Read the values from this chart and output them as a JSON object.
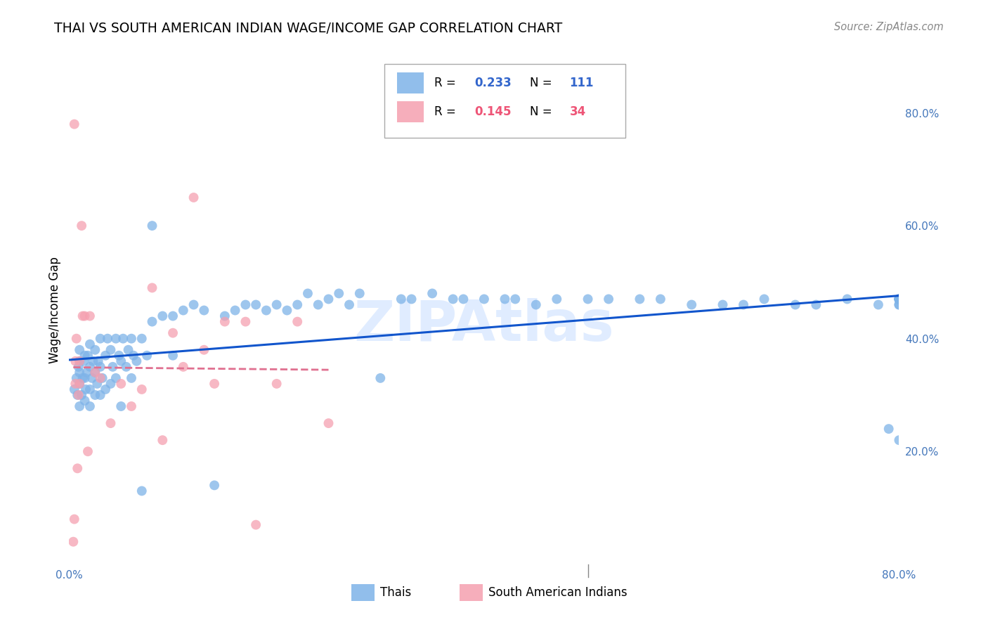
{
  "title": "THAI VS SOUTH AMERICAN INDIAN WAGE/INCOME GAP CORRELATION CHART",
  "source": "Source: ZipAtlas.com",
  "ylabel": "Wage/Income Gap",
  "xlim": [
    0.0,
    0.8
  ],
  "ylim": [
    0.0,
    0.9
  ],
  "legend_thai_R": "0.233",
  "legend_thai_N": "111",
  "legend_sa_R": "0.145",
  "legend_sa_N": "34",
  "thai_color": "#7EB3E8",
  "sa_color": "#F5A0B0",
  "trendline_thai_color": "#1155CC",
  "trendline_sa_color": "#E07090",
  "watermark": "ZIPAtlas",
  "thai_x": [
    0.005,
    0.007,
    0.008,
    0.009,
    0.01,
    0.01,
    0.01,
    0.01,
    0.01,
    0.012,
    0.013,
    0.014,
    0.015,
    0.015,
    0.015,
    0.016,
    0.017,
    0.018,
    0.02,
    0.02,
    0.02,
    0.02,
    0.022,
    0.023,
    0.025,
    0.025,
    0.025,
    0.027,
    0.028,
    0.03,
    0.03,
    0.03,
    0.032,
    0.035,
    0.035,
    0.037,
    0.04,
    0.04,
    0.042,
    0.045,
    0.045,
    0.048,
    0.05,
    0.05,
    0.052,
    0.055,
    0.057,
    0.06,
    0.06,
    0.062,
    0.065,
    0.07,
    0.07,
    0.075,
    0.08,
    0.08,
    0.09,
    0.1,
    0.1,
    0.11,
    0.12,
    0.13,
    0.14,
    0.15,
    0.16,
    0.17,
    0.18,
    0.19,
    0.2,
    0.21,
    0.22,
    0.23,
    0.24,
    0.25,
    0.26,
    0.27,
    0.28,
    0.3,
    0.32,
    0.33,
    0.35,
    0.37,
    0.38,
    0.4,
    0.42,
    0.43,
    0.45,
    0.47,
    0.5,
    0.52,
    0.55,
    0.57,
    0.6,
    0.63,
    0.65,
    0.67,
    0.7,
    0.72,
    0.75,
    0.78,
    0.79,
    0.8,
    0.8,
    0.8,
    0.8,
    0.8,
    0.8,
    0.8,
    0.8,
    0.8,
    0.8
  ],
  "thai_y": [
    0.31,
    0.33,
    0.3,
    0.35,
    0.28,
    0.32,
    0.34,
    0.36,
    0.38,
    0.3,
    0.33,
    0.36,
    0.29,
    0.33,
    0.37,
    0.31,
    0.34,
    0.37,
    0.28,
    0.31,
    0.35,
    0.39,
    0.33,
    0.36,
    0.3,
    0.34,
    0.38,
    0.32,
    0.36,
    0.3,
    0.35,
    0.4,
    0.33,
    0.31,
    0.37,
    0.4,
    0.32,
    0.38,
    0.35,
    0.33,
    0.4,
    0.37,
    0.28,
    0.36,
    0.4,
    0.35,
    0.38,
    0.33,
    0.4,
    0.37,
    0.36,
    0.13,
    0.4,
    0.37,
    0.6,
    0.43,
    0.44,
    0.44,
    0.37,
    0.45,
    0.46,
    0.45,
    0.14,
    0.44,
    0.45,
    0.46,
    0.46,
    0.45,
    0.46,
    0.45,
    0.46,
    0.48,
    0.46,
    0.47,
    0.48,
    0.46,
    0.48,
    0.33,
    0.47,
    0.47,
    0.48,
    0.47,
    0.47,
    0.47,
    0.47,
    0.47,
    0.46,
    0.47,
    0.47,
    0.47,
    0.47,
    0.47,
    0.46,
    0.46,
    0.46,
    0.47,
    0.46,
    0.46,
    0.47,
    0.46,
    0.24,
    0.22,
    0.46,
    0.47,
    0.47,
    0.47,
    0.47,
    0.46,
    0.47,
    0.47,
    0.47
  ],
  "sa_x": [
    0.004,
    0.005,
    0.005,
    0.006,
    0.006,
    0.007,
    0.008,
    0.009,
    0.01,
    0.01,
    0.012,
    0.013,
    0.015,
    0.018,
    0.02,
    0.025,
    0.03,
    0.04,
    0.05,
    0.06,
    0.07,
    0.08,
    0.09,
    0.1,
    0.11,
    0.12,
    0.13,
    0.14,
    0.15,
    0.17,
    0.18,
    0.2,
    0.22,
    0.25
  ],
  "sa_y": [
    0.04,
    0.08,
    0.78,
    0.32,
    0.36,
    0.4,
    0.17,
    0.3,
    0.32,
    0.36,
    0.6,
    0.44,
    0.44,
    0.2,
    0.44,
    0.34,
    0.33,
    0.25,
    0.32,
    0.28,
    0.31,
    0.49,
    0.22,
    0.41,
    0.35,
    0.65,
    0.38,
    0.32,
    0.43,
    0.43,
    0.07,
    0.32,
    0.43,
    0.25
  ]
}
